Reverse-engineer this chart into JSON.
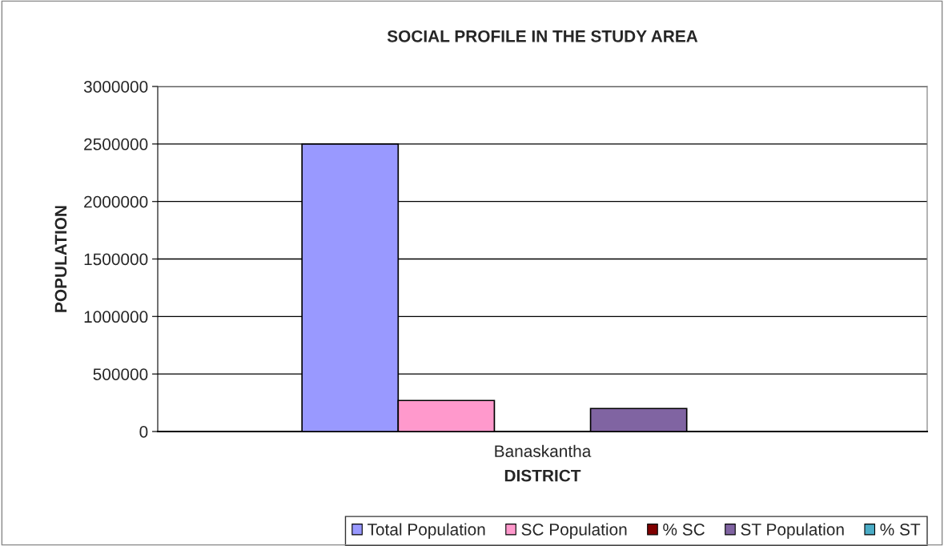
{
  "chart_data": {
    "type": "bar",
    "title": "SOCIAL PROFILE IN THE STUDY AREA",
    "xlabel": "DISTRICT",
    "ylabel": "POPULATION",
    "categories": [
      "Banaskantha"
    ],
    "series": [
      {
        "name": "Total Population",
        "color": "#9999ff",
        "values": [
          2500000
        ]
      },
      {
        "name": "SC Population",
        "color": "#ff99cc",
        "values": [
          270000
        ]
      },
      {
        "name": "% SC",
        "color": "#800000",
        "values": [
          null
        ]
      },
      {
        "name": "ST Population",
        "color": "#8064a2",
        "values": [
          200000
        ]
      },
      {
        "name": "% ST",
        "color": "#4bacc6",
        "values": [
          null
        ]
      }
    ],
    "ylim": [
      0,
      3000000
    ],
    "yticks": [
      0,
      500000,
      1000000,
      1500000,
      2000000,
      2500000,
      3000000
    ],
    "grid": "y",
    "legend": "bottom"
  }
}
